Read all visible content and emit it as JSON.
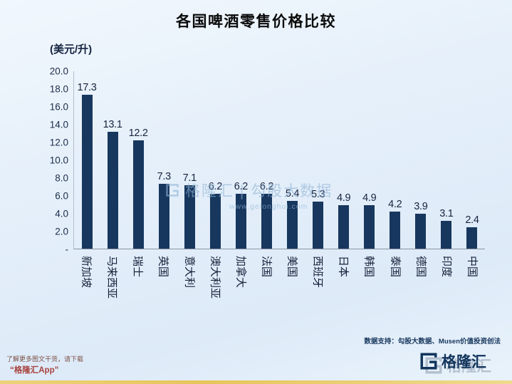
{
  "title": "各国啤酒零售价格比较",
  "chart_data": {
    "type": "bar",
    "title": "各国啤酒零售价格比较",
    "unit_label": "(美元/升)",
    "categories": [
      "新加坡",
      "马来西亚",
      "瑞士",
      "英国",
      "意大利",
      "澳大利亚",
      "加拿大",
      "法国",
      "美国",
      "西班牙",
      "日本",
      "韩国",
      "泰国",
      "德国",
      "印度",
      "中国"
    ],
    "values": [
      17.3,
      13.1,
      12.2,
      7.3,
      7.1,
      6.2,
      6.2,
      6.2,
      5.4,
      5.3,
      4.9,
      4.9,
      4.2,
      3.9,
      3.1,
      2.4
    ],
    "xlabel": "",
    "ylabel": "(美元/升)",
    "ylim": [
      0,
      20
    ],
    "yticks": [
      "20.0",
      "18.0",
      "16.0",
      "14.0",
      "12.0",
      "10.0",
      "8.0",
      "6.0",
      "4.0",
      "2.0",
      "-"
    ],
    "bar_color": "#17375e",
    "grid": false,
    "legend": false
  },
  "watermark": {
    "text": "格隆汇 | 勾股大数据",
    "url": "www.gelonghui.com"
  },
  "footer": {
    "promo_line1": "了解更多图文干货，请下载",
    "promo_line2": "“格隆汇App”",
    "data_support": "数据支持：勾股大数据、Musen价值投资创法",
    "brand": "格隆汇"
  },
  "colors": {
    "bar": "#17375e",
    "brand_navy": "#12355c",
    "promo_red": "#a8433e",
    "accent_gold": "#e7c55c",
    "background": "#e6f0fa"
  }
}
